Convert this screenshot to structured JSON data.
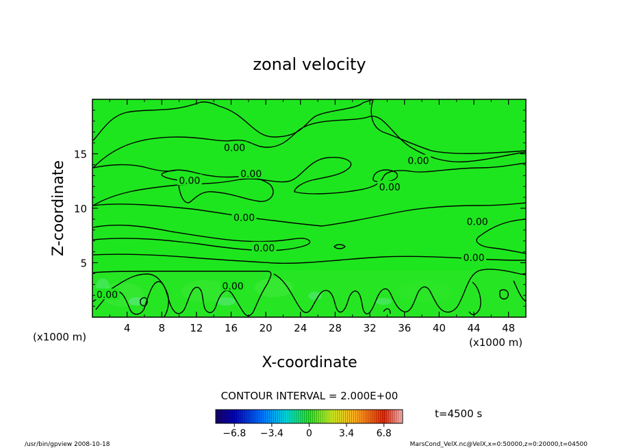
{
  "chart_data": {
    "type": "heatmap",
    "title": "zonal velocity",
    "xlabel": "X-coordinate",
    "ylabel": "Z-coordinate",
    "x_unit_left": "(x1000 m)",
    "x_unit_right": "(x1000 m)",
    "xlim": [
      0,
      50
    ],
    "ylim": [
      0,
      20
    ],
    "xticks": [
      4,
      8,
      12,
      16,
      20,
      24,
      28,
      32,
      36,
      40,
      44,
      48
    ],
    "yticks": [
      5,
      10,
      15
    ],
    "field_level": 0.0,
    "contour_label": "0.00",
    "contour_interval_text": "CONTOUR INTERVAL = 2.000E+00",
    "time_text": "t=4500 s",
    "colorbar": {
      "min": -8.5,
      "max": 8.5,
      "tick_values": [
        -6.8,
        -3.4,
        0,
        3.4,
        6.8
      ],
      "tick_labels": [
        "−6.8",
        "−3.4",
        "0",
        "3.4",
        "6.8"
      ]
    },
    "contour_labels": [
      {
        "x": 16.4,
        "z": 15.5,
        "text": "0.00"
      },
      {
        "x": 18.3,
        "z": 13.1,
        "text": "0.00"
      },
      {
        "x": 11.2,
        "z": 12.5,
        "text": "0.00"
      },
      {
        "x": 17.5,
        "z": 9.1,
        "text": "0.00"
      },
      {
        "x": 19.8,
        "z": 6.3,
        "text": "0.00"
      },
      {
        "x": 37.6,
        "z": 14.3,
        "text": "0.00"
      },
      {
        "x": 34.3,
        "z": 11.9,
        "text": "0.00"
      },
      {
        "x": 44.4,
        "z": 8.7,
        "text": "0.00"
      },
      {
        "x": 44.0,
        "z": 5.4,
        "text": "0.00"
      },
      {
        "x": 1.7,
        "z": 2.0,
        "text": "0.00"
      },
      {
        "x": 16.2,
        "z": 2.8,
        "text": "0.00"
      }
    ]
  },
  "footer": {
    "left": "/usr/bin/gpview   2008-10-18",
    "right": "MarsCond_VelX.nc@VelX,x=0:50000,z=0:20000,t=04500"
  },
  "colors": {
    "field": "#1ee61e",
    "contour": "#000000"
  }
}
